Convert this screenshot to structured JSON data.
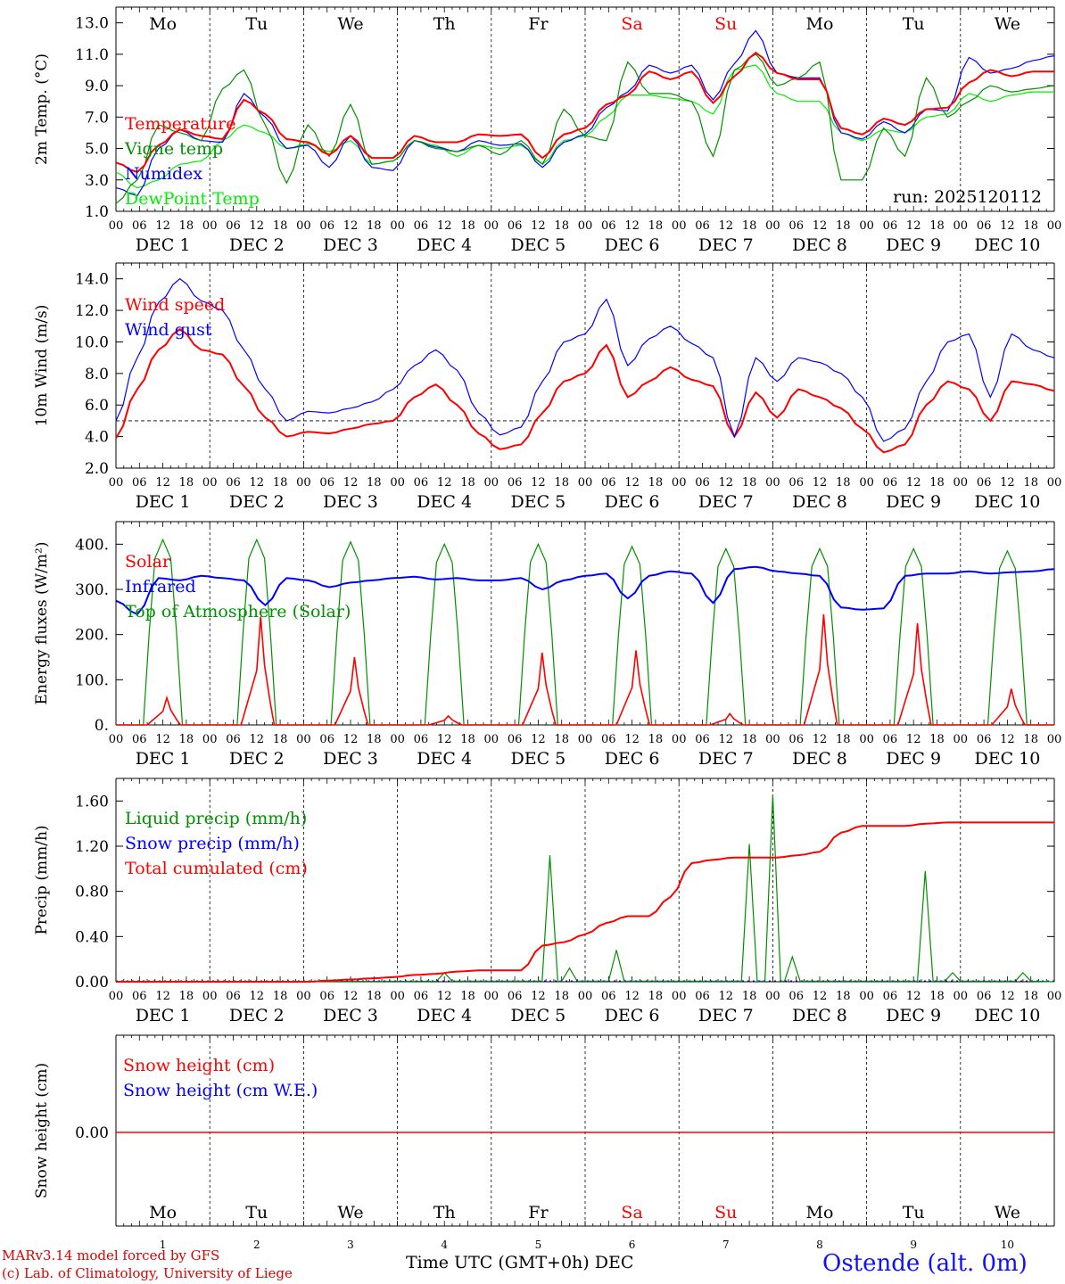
{
  "run_label": "run: 2025120112",
  "days_top": [
    {
      "abbr": "Mo",
      "color": "#000000"
    },
    {
      "abbr": "Tu",
      "color": "#000000"
    },
    {
      "abbr": "We",
      "color": "#000000"
    },
    {
      "abbr": "Th",
      "color": "#000000"
    },
    {
      "abbr": "Fr",
      "color": "#000000"
    },
    {
      "abbr": "Sa",
      "color": "#ff0000"
    },
    {
      "abbr": "Su",
      "color": "#ff0000"
    },
    {
      "abbr": "Mo",
      "color": "#000000"
    },
    {
      "abbr": "Tu",
      "color": "#000000"
    },
    {
      "abbr": "We",
      "color": "#000000"
    }
  ],
  "date_labels": [
    "DEC  1",
    "DEC  2",
    "DEC  3",
    "DEC  4",
    "DEC  5",
    "DEC  6",
    "DEC  7",
    "DEC  8",
    "DEC  9",
    "DEC 10"
  ],
  "hour_ticks": [
    "00",
    "06",
    "12",
    "18"
  ],
  "bottom_day_numbers": [
    "1",
    "2",
    "3",
    "4",
    "5",
    "6",
    "7",
    "8",
    "9",
    "10"
  ],
  "footer": {
    "model": "MARv3.14 model forced by GFS",
    "lab": "(c) Lab. of Climatology, University of Liege",
    "xlabel": "Time UTC (GMT+0h) DEC",
    "station": "Ostende (alt. 0m)"
  },
  "chart_data": [
    {
      "type": "line",
      "ylabel": "2m Temp. (°C)",
      "ylim": [
        1.0,
        14.0
      ],
      "yticks": [
        "1.0",
        "3.0",
        "5.0",
        "7.0",
        "9.0",
        "11.0",
        "13.0"
      ],
      "x": "hours from DEC 1 00 UTC, every 6h",
      "series": [
        {
          "name": "Temperature",
          "color": "#ff0000",
          "values": [
            4.1,
            3.5,
            5.2,
            6.2,
            5.8,
            5.6,
            8.1,
            7.2,
            5.6,
            5.4,
            4.6,
            5.8,
            4.4,
            4.4,
            5.8,
            5.4,
            5.4,
            5.9,
            5.8,
            5.9,
            4.4,
            5.9,
            6.3,
            7.8,
            8.4,
            9.9,
            9.4,
            9.9,
            7.9,
            9.6,
            11.1,
            9.8,
            9.4,
            9.4,
            6.3,
            5.9,
            6.9,
            6.5,
            7.5,
            7.6,
            9.2,
            10.0,
            9.6,
            9.9,
            9.9
          ]
        },
        {
          "name": "Vigne temp",
          "color": "#009000",
          "values": [
            1.5,
            3.0,
            6.5,
            6.0,
            5.5,
            8.8,
            10.0,
            6.5,
            2.8,
            6.5,
            4.5,
            7.8,
            4.0,
            4.2,
            5.5,
            5.0,
            4.8,
            5.2,
            4.6,
            5.5,
            4.0,
            7.5,
            5.8,
            5.5,
            10.5,
            8.5,
            8.5,
            8.0,
            4.5,
            10.0,
            11.0,
            9.0,
            9.5,
            10.5,
            3.0,
            3.0,
            6.3,
            4.5,
            9.5,
            7.0,
            8.0,
            9.0,
            8.6,
            8.8,
            9.0
          ]
        },
        {
          "name": "Numidex",
          "color": "#0000ff",
          "values": [
            2.5,
            2.0,
            5.0,
            6.2,
            5.5,
            5.4,
            8.5,
            7.0,
            5.0,
            5.2,
            3.8,
            5.8,
            3.8,
            3.6,
            5.5,
            5.1,
            4.8,
            5.5,
            5.2,
            5.3,
            3.8,
            5.4,
            5.9,
            7.6,
            8.6,
            10.3,
            9.8,
            10.3,
            8.1,
            10.4,
            12.5,
            9.8,
            9.5,
            9.5,
            6.0,
            5.6,
            6.7,
            6.0,
            7.5,
            7.4,
            10.8,
            9.8,
            10.1,
            10.6,
            10.9
          ]
        },
        {
          "name": "DewPoint Temp",
          "color": "#00ee00",
          "values": [
            3.5,
            2.5,
            3.0,
            4.0,
            4.2,
            5.5,
            6.5,
            6.0,
            5.0,
            5.3,
            4.8,
            5.5,
            4.0,
            4.2,
            5.5,
            5.2,
            4.5,
            5.2,
            5.0,
            5.2,
            4.0,
            5.5,
            5.8,
            7.0,
            8.4,
            8.4,
            8.2,
            8.0,
            7.2,
            10.0,
            10.3,
            8.5,
            8.0,
            8.0,
            6.0,
            5.5,
            6.2,
            6.0,
            7.0,
            7.2,
            8.5,
            8.0,
            8.4,
            8.6,
            8.6
          ]
        }
      ]
    },
    {
      "type": "line",
      "ylabel": "10m Wind (m/s)",
      "ylim": [
        2.0,
        15.0
      ],
      "yticks": [
        "2.0",
        "4.0",
        "6.0",
        "8.0",
        "10.0",
        "12.0",
        "14.0"
      ],
      "reference_line": 5.0,
      "series": [
        {
          "name": "Wind speed",
          "color": "#ff0000",
          "values": [
            3.9,
            7.0,
            9.5,
            10.8,
            9.5,
            9.2,
            7.2,
            5.2,
            4.0,
            4.3,
            4.2,
            4.5,
            4.8,
            5.0,
            6.5,
            7.3,
            6.0,
            4.2,
            3.2,
            3.5,
            5.5,
            7.5,
            8.0,
            9.8,
            6.5,
            7.5,
            8.4,
            7.6,
            7.2,
            4.0,
            6.8,
            5.2,
            7.0,
            6.5,
            5.8,
            4.5,
            3.0,
            3.5,
            6.0,
            7.5,
            7.0,
            5.0,
            7.5,
            7.3,
            6.9
          ]
        },
        {
          "name": "Wind gust",
          "color": "#0000ff",
          "values": [
            5.0,
            9.0,
            12.5,
            14.0,
            12.6,
            12.0,
            9.5,
            7.0,
            5.0,
            5.6,
            5.5,
            5.8,
            6.2,
            7.0,
            8.5,
            9.5,
            8.2,
            5.5,
            4.1,
            4.6,
            7.5,
            10.0,
            10.5,
            12.7,
            8.5,
            10.2,
            11.0,
            9.9,
            9.0,
            4.0,
            9.0,
            7.5,
            9.0,
            8.7,
            8.0,
            6.5,
            3.7,
            4.5,
            7.5,
            10.0,
            10.5,
            6.5,
            10.5,
            9.5,
            9.0
          ]
        }
      ]
    },
    {
      "type": "line",
      "ylabel": "Energy fluxes (W/m²)",
      "ylim": [
        0,
        450
      ],
      "yticks": [
        "0.",
        "100.",
        "200.",
        "300.",
        "400."
      ],
      "series": [
        {
          "name": "Solar",
          "color": "#ff0000",
          "peaks_per_day": [
            60,
            240,
            150,
            20,
            160,
            165,
            25,
            245,
            225,
            80
          ]
        },
        {
          "name": "Infrared",
          "color": "#0000ff",
          "values": [
            275,
            245,
            325,
            320,
            330,
            325,
            320,
            265,
            325,
            320,
            305,
            315,
            320,
            325,
            328,
            322,
            325,
            320,
            320,
            325,
            300,
            320,
            330,
            335,
            280,
            330,
            340,
            335,
            270,
            345,
            350,
            340,
            335,
            330,
            260,
            255,
            258,
            330,
            335,
            335,
            340,
            335,
            338,
            340,
            345
          ]
        },
        {
          "name": "Top of Atmosphere (Solar)",
          "color": "#009000",
          "peaks_per_day": [
            410,
            410,
            405,
            400,
            400,
            395,
            390,
            390,
            390,
            385
          ]
        }
      ]
    },
    {
      "type": "line",
      "ylabel": "Precip (mm/h)",
      "ylim": [
        0,
        1.8
      ],
      "yticks": [
        "0.00",
        "0.40",
        "0.80",
        "1.20",
        "1.60"
      ],
      "series": [
        {
          "name": "Liquid precip (mm/h)",
          "color": "#009000",
          "spikes": [
            {
              "h": 111,
              "v": 1.12
            },
            {
              "h": 116,
              "v": 0.12
            },
            {
              "h": 128,
              "v": 0.28
            },
            {
              "h": 162,
              "v": 1.22
            },
            {
              "h": 168,
              "v": 1.65
            },
            {
              "h": 173,
              "v": 0.22
            },
            {
              "h": 207,
              "v": 0.98
            },
            {
              "h": 214,
              "v": 0.08
            },
            {
              "h": 232,
              "v": 0.08
            },
            {
              "h": 84,
              "v": 0.08
            }
          ]
        },
        {
          "name": "Snow precip (mm/h)",
          "color": "#0000ff",
          "values": [
            0
          ]
        },
        {
          "name": "Total cumulated (cm)",
          "color": "#ff0000",
          "values": [
            0.0,
            0.0,
            0.0,
            0.0,
            0.0,
            0.0,
            0.0,
            0.0,
            0.0,
            0.0,
            0.01,
            0.02,
            0.03,
            0.04,
            0.06,
            0.07,
            0.09,
            0.1,
            0.1,
            0.1,
            0.32,
            0.35,
            0.42,
            0.52,
            0.58,
            0.58,
            0.75,
            1.05,
            1.08,
            1.1,
            1.1,
            1.1,
            1.12,
            1.15,
            1.32,
            1.38,
            1.38,
            1.38,
            1.4,
            1.41,
            1.41,
            1.41,
            1.41,
            1.41,
            1.41
          ]
        }
      ]
    },
    {
      "type": "line",
      "ylabel": "Snow height (cm)",
      "ytick": "0.00",
      "series": [
        {
          "name": "Snow height (cm)",
          "color": "#ff0000",
          "values": [
            0
          ]
        },
        {
          "name": "Snow height (cm W.E.)",
          "color": "#0000ff",
          "values": [
            0
          ]
        }
      ]
    }
  ]
}
